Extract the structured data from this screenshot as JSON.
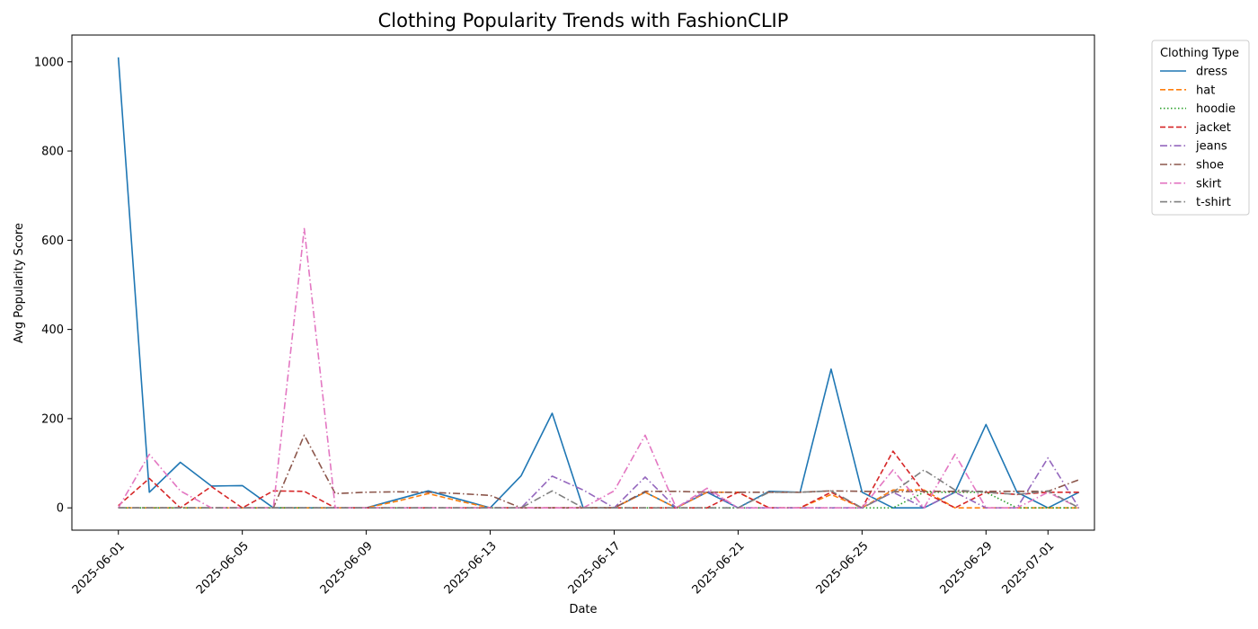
{
  "chart_data": {
    "type": "line",
    "title": "Clothing Popularity Trends with FashionCLIP",
    "xlabel": "Date",
    "ylabel": "Avg Popularity Score",
    "x_start": "2025-06-01",
    "x_end": "2025-07-01",
    "xlim": [
      "2025-05-30T12:00",
      "2025-07-02T12:00"
    ],
    "ylim": [
      -50,
      1060
    ],
    "x_ticks": [
      "2025-06-01",
      "2025-06-05",
      "2025-06-09",
      "2025-06-13",
      "2025-06-17",
      "2025-06-21",
      "2025-06-25",
      "2025-06-29",
      "2025-07-01"
    ],
    "y_ticks": [
      0,
      200,
      400,
      600,
      800,
      1000
    ],
    "grid": false,
    "legend": {
      "title": "Clothing Type",
      "placement": "outside-top-right"
    },
    "series": [
      {
        "name": "dress",
        "color": "#1f77b4",
        "dash": "solid",
        "values": [
          1010,
          35,
          102,
          49,
          50,
          0,
          0,
          0,
          0,
          19,
          38,
          19,
          0,
          72,
          212,
          0,
          0,
          35,
          0,
          35,
          0,
          37,
          35,
          311,
          35,
          0,
          0,
          35,
          187,
          35,
          0,
          35
        ]
      },
      {
        "name": "hat",
        "color": "#ff7f0e",
        "dash": "dashed",
        "values": [
          0,
          0,
          0,
          0,
          0,
          0,
          0,
          0,
          0,
          15,
          32,
          15,
          0,
          0,
          0,
          0,
          0,
          35,
          0,
          35,
          35,
          0,
          0,
          30,
          0,
          40,
          40,
          0,
          0,
          0,
          0,
          0
        ]
      },
      {
        "name": "hoodie",
        "color": "#2ca02c",
        "dash": "dotted",
        "values": [
          0,
          0,
          0,
          0,
          0,
          0,
          0,
          0,
          0,
          0,
          0,
          0,
          0,
          0,
          0,
          0,
          0,
          0,
          0,
          0,
          0,
          0,
          0,
          0,
          0,
          0,
          35,
          35,
          35,
          0,
          0,
          0
        ]
      },
      {
        "name": "jacket",
        "color": "#d62728",
        "dash": "dashed",
        "values": [
          5,
          66,
          0,
          48,
          0,
          38,
          37,
          0,
          0,
          0,
          0,
          0,
          0,
          0,
          0,
          0,
          0,
          0,
          0,
          0,
          35,
          0,
          0,
          35,
          0,
          127,
          35,
          0,
          35,
          30,
          35,
          35
        ]
      },
      {
        "name": "jeans",
        "color": "#9467bd",
        "dash": "dashdot",
        "values": [
          0,
          0,
          0,
          0,
          0,
          0,
          0,
          0,
          0,
          0,
          0,
          0,
          0,
          0,
          71,
          40,
          0,
          69,
          0,
          38,
          0,
          0,
          0,
          0,
          0,
          35,
          0,
          35,
          0,
          0,
          112,
          0
        ]
      },
      {
        "name": "shoe",
        "color": "#8c564b",
        "dash": "dashdot",
        "values": [
          0,
          0,
          0,
          0,
          0,
          0,
          163,
          32,
          35,
          36,
          35,
          32,
          28,
          0,
          0,
          0,
          0,
          37,
          37,
          35,
          35,
          35,
          35,
          38,
          37,
          36,
          37,
          37,
          37,
          37,
          37,
          63
        ]
      },
      {
        "name": "skirt",
        "color": "#e377c2",
        "dash": "dashdot",
        "values": [
          0,
          120,
          38,
          0,
          0,
          0,
          626,
          0,
          0,
          0,
          0,
          0,
          0,
          0,
          0,
          0,
          38,
          163,
          0,
          44,
          0,
          0,
          0,
          0,
          0,
          85,
          0,
          120,
          0,
          0,
          35,
          0
        ]
      },
      {
        "name": "t-shirt",
        "color": "#7f7f7f",
        "dash": "dashdot",
        "values": [
          0,
          0,
          0,
          0,
          0,
          0,
          0,
          0,
          0,
          0,
          0,
          0,
          0,
          0,
          38,
          0,
          0,
          0,
          0,
          0,
          0,
          35,
          35,
          38,
          0,
          35,
          85,
          40,
          35,
          30,
          38,
          0
        ]
      }
    ]
  }
}
